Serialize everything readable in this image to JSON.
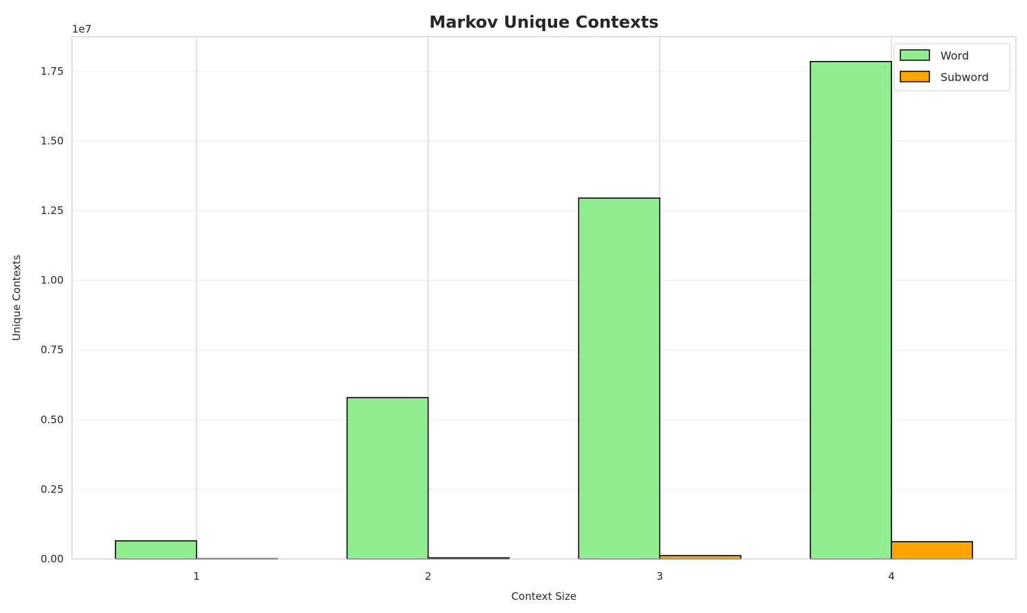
{
  "chart_data": {
    "type": "bar",
    "title": "Markov Unique Contexts",
    "xlabel": "Context Size",
    "ylabel": "Unique Contexts",
    "y_offset_label": "1e7",
    "categories": [
      "1",
      "2",
      "3",
      "4"
    ],
    "series": [
      {
        "name": "Word",
        "color": "#90ee90",
        "values": [
          650000,
          5790000,
          12950000,
          17850000
        ]
      },
      {
        "name": "Subword",
        "color": "#ffa500",
        "values": [
          10000,
          40000,
          120000,
          620000
        ]
      }
    ],
    "yticks": [
      "0.00",
      "0.25",
      "0.50",
      "0.75",
      "1.00",
      "1.25",
      "1.50",
      "1.75"
    ],
    "ytick_values": [
      0,
      2500000,
      5000000,
      7500000,
      10000000,
      12500000,
      15000000,
      17500000
    ],
    "ylim": [
      0,
      18740000
    ],
    "grid": true,
    "legend_placement": "top-right"
  }
}
